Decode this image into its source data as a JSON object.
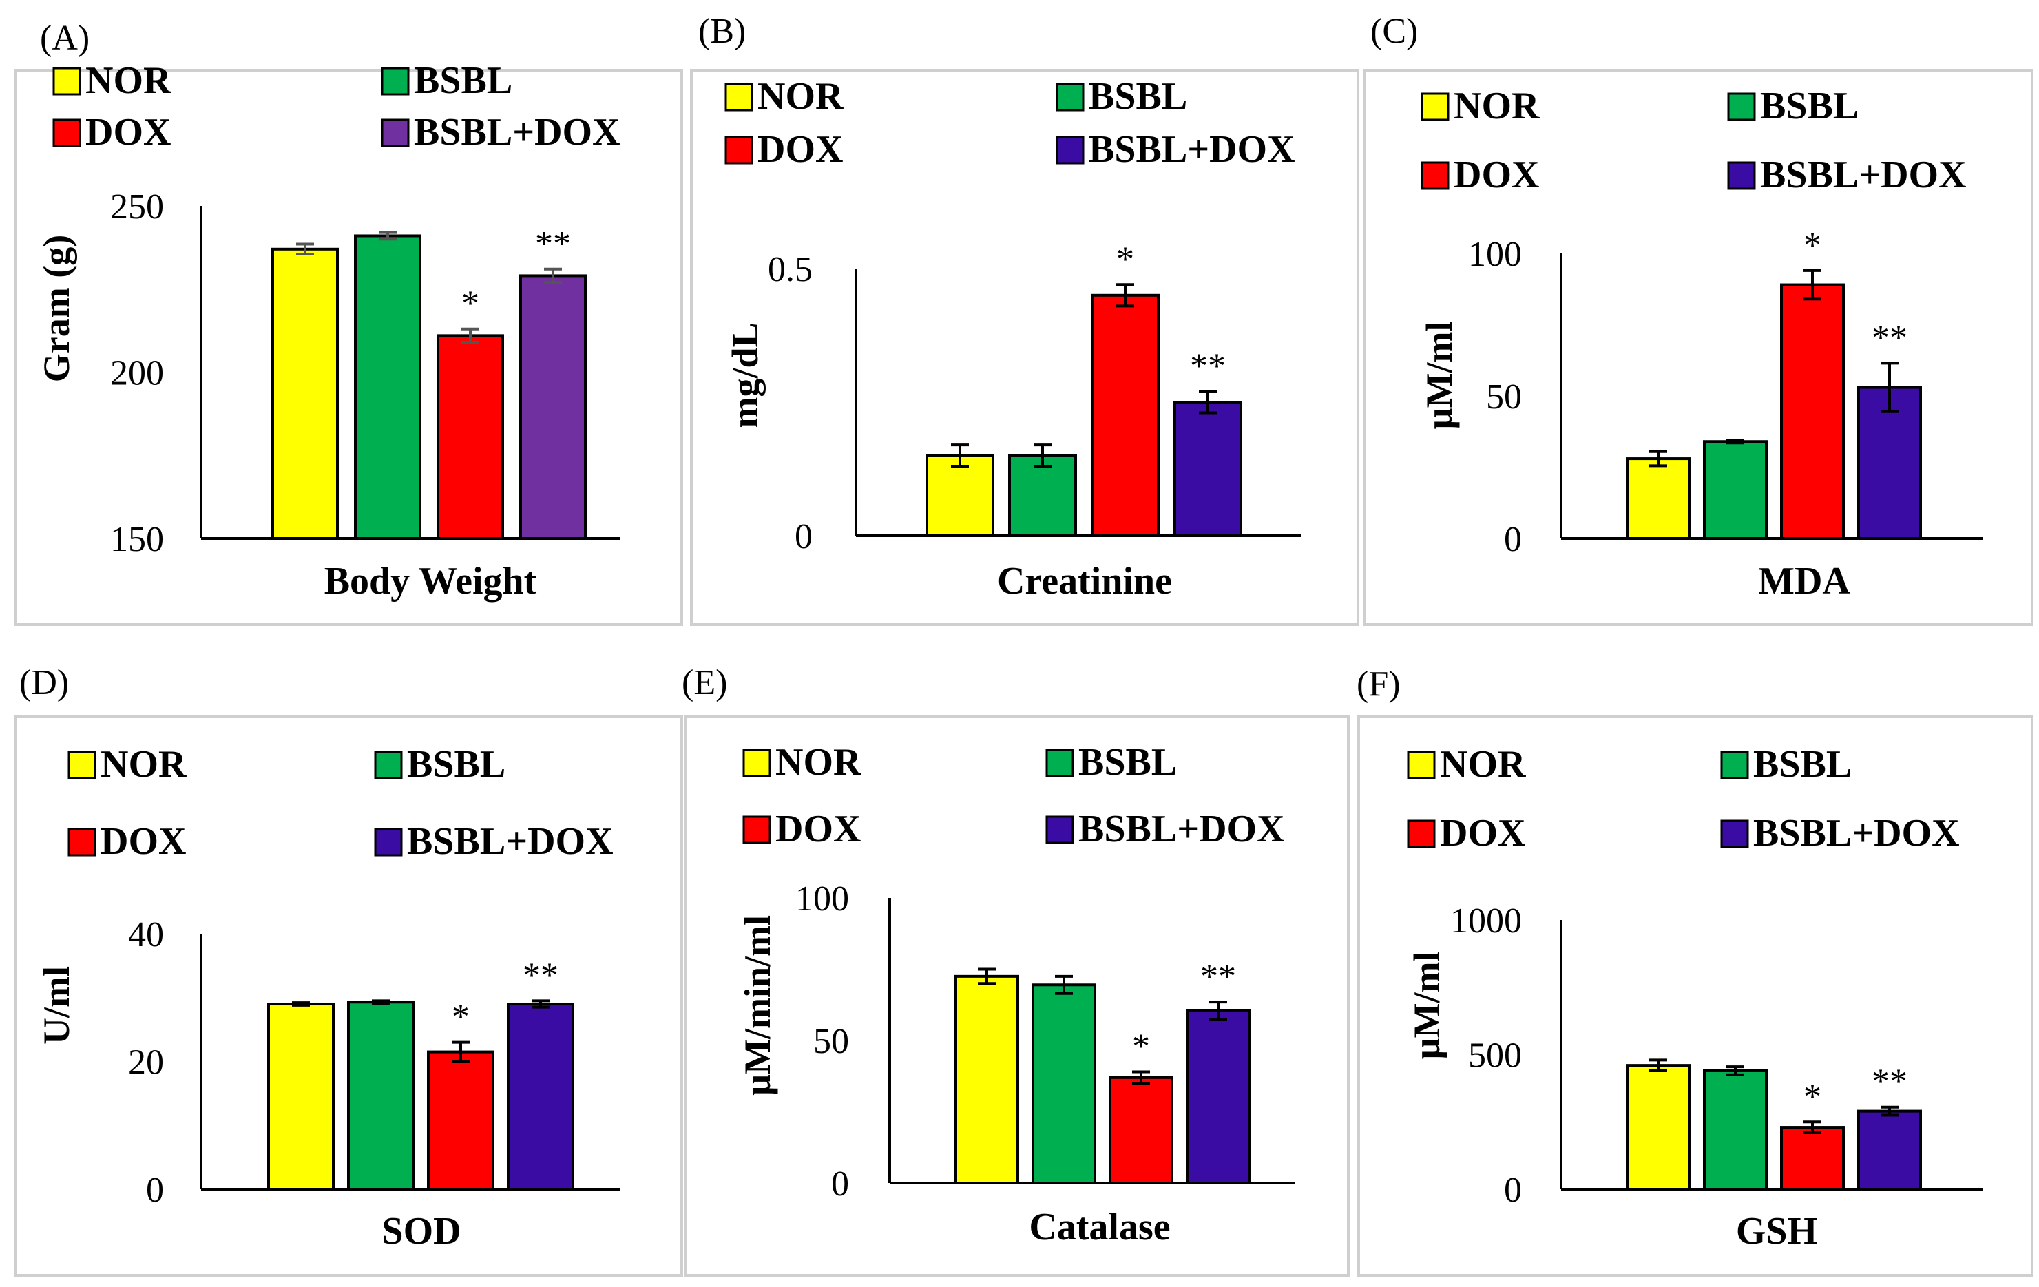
{
  "colors": {
    "NOR": "#ffff00",
    "BSBL": "#00b050",
    "DOX": "#ff0000",
    "BSBL+DOX": "#3a0ca3",
    "BSBL+DOX_panelA": "#7030a0"
  },
  "chart_data": [
    {
      "type": "bar",
      "panel": "(A)",
      "title": "",
      "xlabel": "Body Weight",
      "ylabel": "Gram (g)",
      "ylim": [
        150,
        250
      ],
      "yticks": [
        "250",
        "200",
        "150"
      ],
      "legend": [
        "NOR",
        "BSBL",
        "DOX",
        "BSBL+DOX"
      ],
      "categories": [
        "NOR",
        "BSBL",
        "DOX",
        "BSBL+DOX"
      ],
      "values": [
        237,
        241,
        211,
        229
      ],
      "errors": [
        1.5,
        1,
        2,
        2
      ],
      "significance": [
        "",
        "",
        "*",
        "**"
      ]
    },
    {
      "type": "bar",
      "panel": "(B)",
      "title": "",
      "xlabel": "Creatinine",
      "ylabel": "mg/dL",
      "ylim": [
        0,
        0.5
      ],
      "yticks": [
        "0.5",
        "0"
      ],
      "legend": [
        "NOR",
        "BSBL",
        "DOX",
        "BSBL+DOX"
      ],
      "categories": [
        "NOR",
        "BSBL",
        "DOX",
        "BSBL+DOX"
      ],
      "values": [
        0.15,
        0.15,
        0.45,
        0.25
      ],
      "errors": [
        0.02,
        0.02,
        0.02,
        0.02
      ],
      "significance": [
        "",
        "",
        "*",
        "**"
      ]
    },
    {
      "type": "bar",
      "panel": "(C)",
      "title": "",
      "xlabel": "MDA",
      "ylabel": "µM/ml",
      "ylim": [
        0,
        100
      ],
      "yticks": [
        "100",
        "50",
        "0"
      ],
      "legend": [
        "NOR",
        "BSBL",
        "DOX",
        "BSBL+DOX"
      ],
      "categories": [
        "NOR",
        "BSBL",
        "DOX",
        "BSBL+DOX"
      ],
      "values": [
        28,
        34,
        89,
        53
      ],
      "errors": [
        2.5,
        0.5,
        5,
        8.5
      ],
      "significance": [
        "",
        "",
        "*",
        "**"
      ]
    },
    {
      "type": "bar",
      "panel": "(D)",
      "title": "",
      "xlabel": "SOD",
      "ylabel": "U/ml",
      "ylim": [
        0,
        40
      ],
      "yticks": [
        "40",
        "20",
        "0"
      ],
      "legend": [
        "NOR",
        "BSBL",
        "DOX",
        "BSBL+DOX"
      ],
      "categories": [
        "NOR",
        "BSBL",
        "DOX",
        "BSBL+DOX"
      ],
      "values": [
        29,
        29.3,
        21.5,
        29
      ],
      "errors": [
        0.2,
        0.2,
        1.5,
        0.5
      ],
      "significance": [
        "",
        "",
        "*",
        "**"
      ]
    },
    {
      "type": "bar",
      "panel": "(E)",
      "title": "",
      "xlabel": "Catalase",
      "ylabel": "µM/min/ml",
      "ylim": [
        0,
        100
      ],
      "yticks": [
        "100",
        "50",
        "0"
      ],
      "legend": [
        "NOR",
        "BSBL",
        "DOX",
        "BSBL+DOX"
      ],
      "categories": [
        "NOR",
        "BSBL",
        "DOX",
        "BSBL+DOX"
      ],
      "values": [
        72.5,
        69.5,
        37,
        60.5
      ],
      "errors": [
        2.5,
        3,
        2,
        3
      ],
      "significance": [
        "",
        "",
        "*",
        "**"
      ]
    },
    {
      "type": "bar",
      "panel": "(F)",
      "title": "",
      "xlabel": "GSH",
      "ylabel": "µM/ml",
      "ylim": [
        0,
        1000
      ],
      "yticks": [
        "1000",
        "500",
        "0"
      ],
      "legend": [
        "NOR",
        "BSBL",
        "DOX",
        "BSBL+DOX"
      ],
      "categories": [
        "NOR",
        "BSBL",
        "DOX",
        "BSBL+DOX"
      ],
      "values": [
        460,
        440,
        230,
        290
      ],
      "errors": [
        20,
        15,
        20,
        15
      ],
      "significance": [
        "",
        "",
        "*",
        "**"
      ]
    }
  ]
}
